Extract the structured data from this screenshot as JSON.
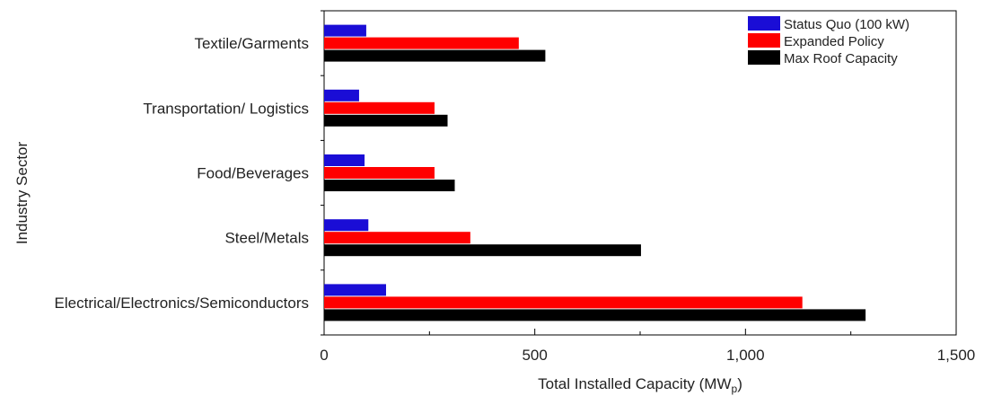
{
  "chart_data": {
    "type": "bar",
    "orientation": "horizontal",
    "categories": [
      "Textile/Garments",
      "Transportation/ Logistics",
      "Food/Beverages",
      "Steel/Metals",
      "Electrical/Electronics/Semiconductors"
    ],
    "series": [
      {
        "name": "Status Quo (100 kW)",
        "color": "#1a0dd6",
        "values": [
          100,
          83,
          96,
          105,
          147
        ]
      },
      {
        "name": "Expanded Policy",
        "color": "#ff0000",
        "values": [
          462,
          262,
          262,
          347,
          1135
        ]
      },
      {
        "name": "Max Roof Capacity",
        "color": "#000000",
        "values": [
          525,
          293,
          310,
          752,
          1285
        ]
      }
    ],
    "xlim": [
      0,
      1500
    ],
    "xticks": [
      0,
      500,
      1000,
      1500
    ],
    "xtick_labels": [
      "0",
      "500",
      "1,000",
      "1,500"
    ],
    "xlabel_main": "Total Installed Capacity (MW",
    "xlabel_sub": "p",
    "xlabel_close": ")",
    "ylabel": "Industry Sector",
    "legend_position": "top-right",
    "grid": false
  }
}
